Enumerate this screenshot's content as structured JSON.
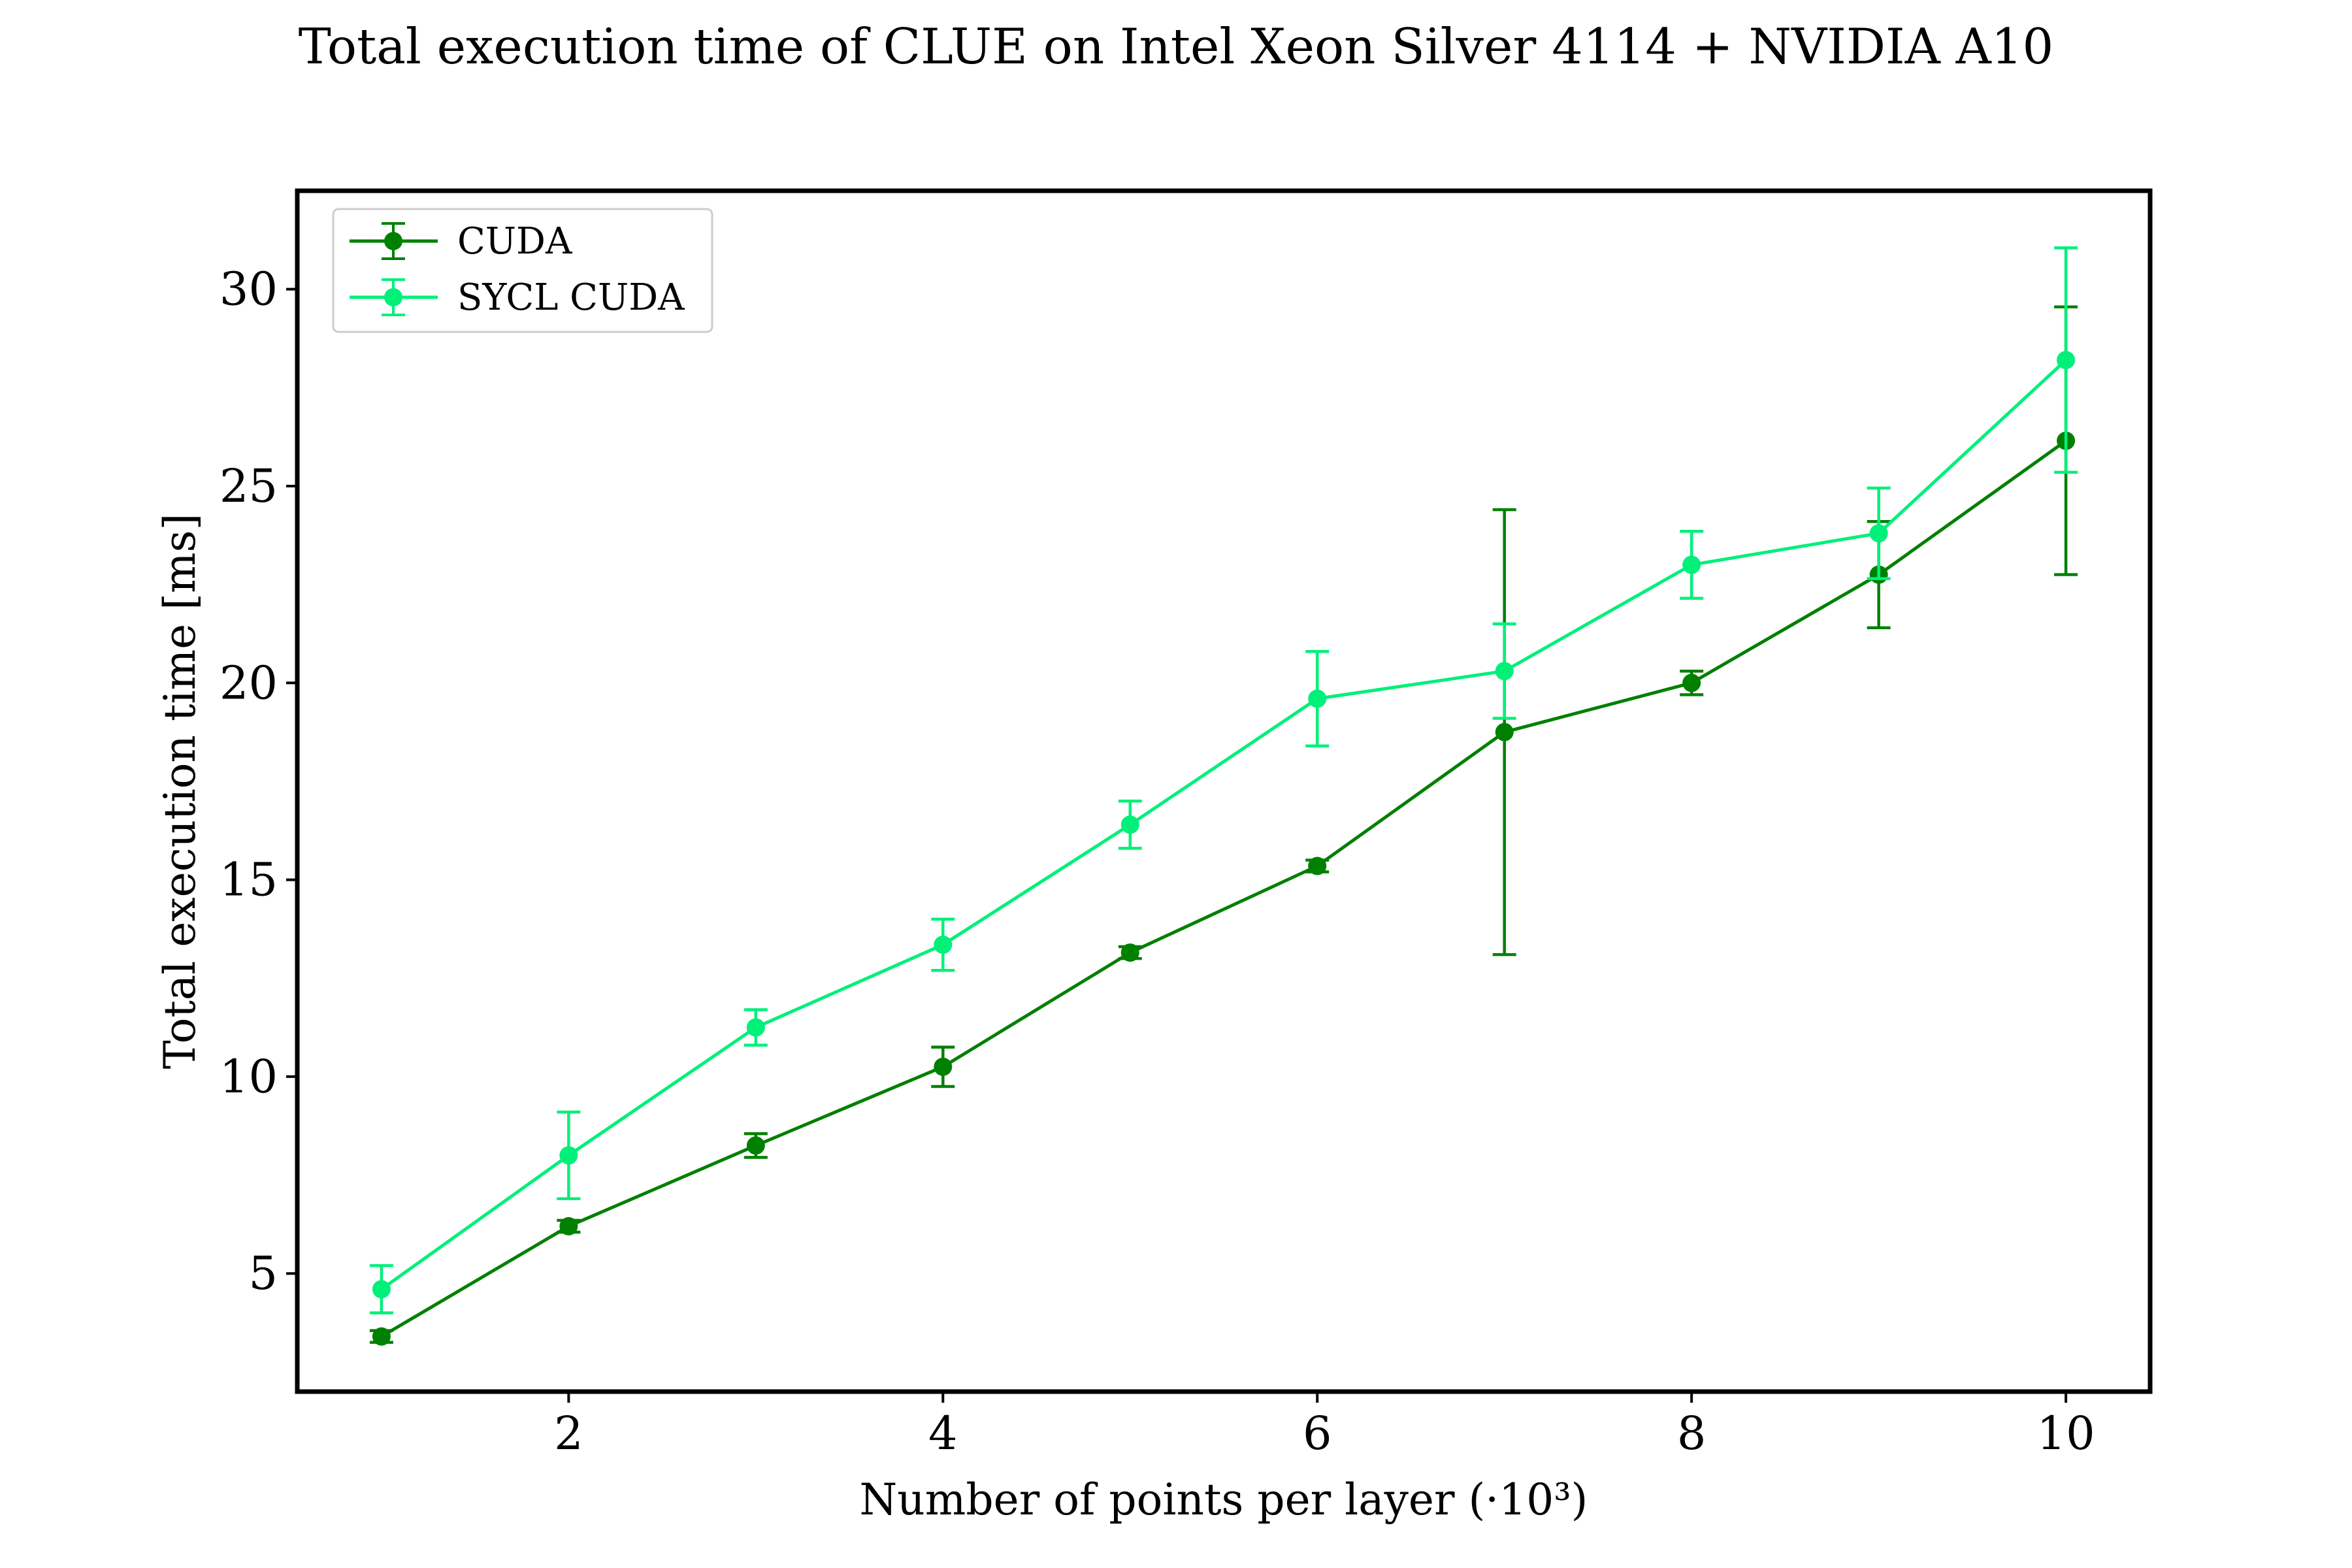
{
  "chart_data": {
    "type": "line",
    "title": "Total execution time of CLUE on Intel Xeon Silver 4114 + NVIDIA A10",
    "xlabel": "Number of points per layer (·10³)",
    "ylabel": "Total execution time [ms]",
    "xlim": [
      0.55,
      10.45
    ],
    "ylim": [
      2.0,
      32.5
    ],
    "xticks": [
      2,
      4,
      6,
      8,
      10
    ],
    "yticks": [
      5,
      10,
      15,
      20,
      25,
      30
    ],
    "grid": false,
    "legend_position": "upper-left",
    "series": [
      {
        "name": "CUDA",
        "color": "#008000",
        "x": [
          1,
          2,
          3,
          4,
          5,
          6,
          7,
          8,
          9,
          10
        ],
        "y": [
          3.4,
          6.2,
          8.25,
          10.25,
          13.15,
          15.35,
          18.75,
          20.0,
          22.75,
          26.15
        ],
        "yerr": [
          0.15,
          0.15,
          0.3,
          0.5,
          0.15,
          0.15,
          5.65,
          0.3,
          1.35,
          3.4
        ]
      },
      {
        "name": "SYCL CUDA",
        "color": "#00f07a",
        "x": [
          1,
          2,
          3,
          4,
          5,
          6,
          7,
          8,
          9,
          10
        ],
        "y": [
          4.6,
          8.0,
          11.25,
          13.35,
          16.4,
          19.6,
          20.3,
          23.0,
          23.8,
          28.2
        ],
        "yerr": [
          0.6,
          1.1,
          0.45,
          0.65,
          0.6,
          1.2,
          1.2,
          0.85,
          1.15,
          2.85
        ]
      }
    ]
  }
}
